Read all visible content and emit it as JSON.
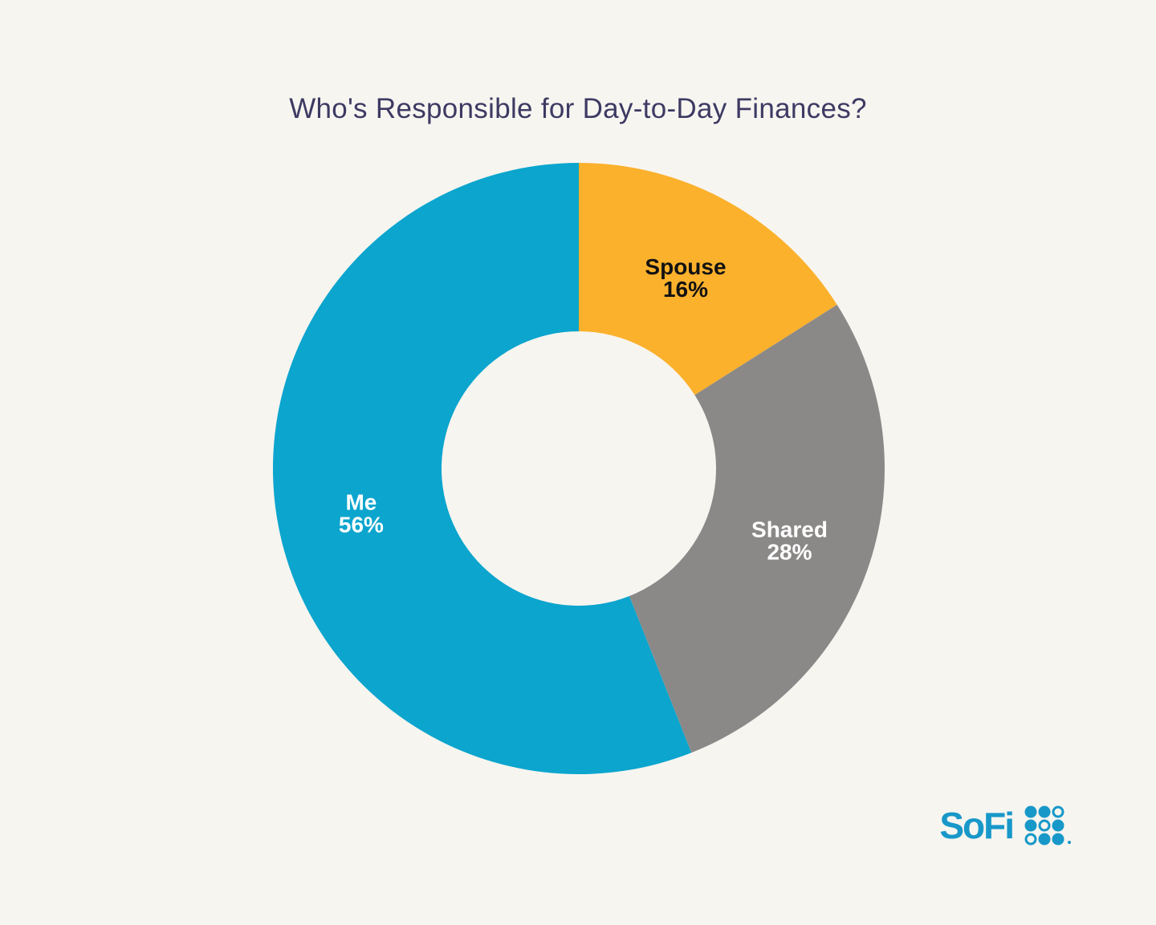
{
  "page": {
    "background": "#F7F5F0"
  },
  "title_color": "#3D3A63",
  "chart_data": {
    "type": "pie",
    "subtype": "donut",
    "title": "Who's Responsible for Day-to-Day Finances?",
    "start_angle_deg": 0,
    "direction": "clockwise",
    "legend_position": "none",
    "labels_inside": true,
    "segments": [
      {
        "label": "Spouse",
        "value": 16,
        "value_label": "16%",
        "color": "#FBB12C",
        "label_color": "#121212"
      },
      {
        "label": "Shared",
        "value": 28,
        "value_label": "28%",
        "color": "#8B8988",
        "label_color": "#FFFFFF"
      },
      {
        "label": "Me",
        "value": 56,
        "value_label": "56%",
        "color": "#0BA5CE",
        "label_color": "#FFFFFF"
      }
    ]
  },
  "logo": {
    "text": "SoFi",
    "color": "#1898C9",
    "grid": [
      "filled",
      "filled",
      "outline",
      "filled",
      "outline",
      "filled",
      "outline",
      "filled",
      "filled"
    ]
  }
}
